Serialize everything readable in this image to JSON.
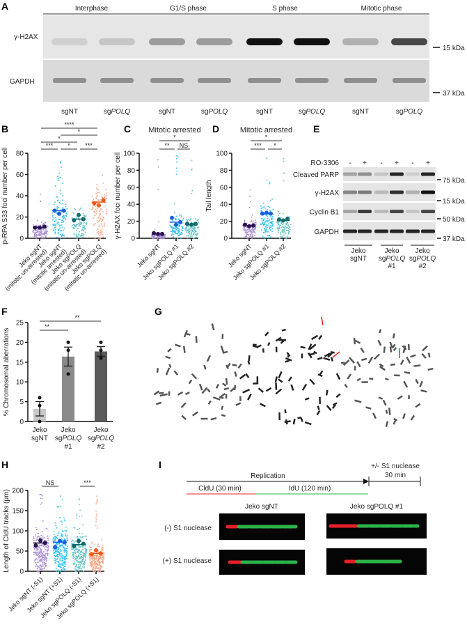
{
  "panel_labels": [
    "A",
    "B",
    "C",
    "D",
    "E",
    "F",
    "G",
    "H",
    "I"
  ],
  "A": {
    "phases": [
      "Interphase",
      "G1/S phase",
      "S phase",
      "Mitotic phase"
    ],
    "rows": [
      "γ-H2AX",
      "GAPDH"
    ],
    "markers": [
      "15 kDa",
      "37 kDa"
    ],
    "lanes": [
      "sgNT",
      "sgPOLQ",
      "sgNT",
      "sgPOLQ",
      "sgNT",
      "sgPOLQ",
      "sgNT",
      "sgPOLQ"
    ]
  },
  "E": {
    "treatment_label": "RO-3306",
    "treatment": [
      "-",
      "+",
      "-",
      "+",
      "-",
      "+"
    ],
    "rows": [
      "Cleaved PARP",
      "γ-H2AX",
      "Cyclin B1",
      "GAPDH"
    ],
    "markers": [
      "75 kDa",
      "15 kDa",
      "50 kDa",
      "37 kDa"
    ],
    "groups": [
      [
        "Jeko",
        "sgNT"
      ],
      [
        "Jeko",
        "sgPOLQ",
        "#1"
      ],
      [
        "Jeko",
        "sgPOLQ",
        "#2"
      ]
    ]
  },
  "I": {
    "timeline": {
      "replication": "Replication",
      "cldu": "CldU (30 min)",
      "idu": "IdU (120 min)",
      "s1": "+/- S1 nuclease",
      "s1_time": "30 min"
    },
    "columns": [
      "Jeko sgNT",
      "Jeko sgPOLQ #1"
    ],
    "rows": [
      "(-) S1 nuclease",
      "(+) S1 nuclease"
    ],
    "colors": {
      "cldu": "#e8202a",
      "idu": "#2db34a"
    }
  },
  "chart_data": [
    {
      "panel": "B",
      "type": "scatter",
      "ylabel": "p-RPA S33 foci number per cell",
      "ylim": [
        0,
        80
      ],
      "yticks": [
        0,
        20,
        40,
        60,
        80
      ],
      "categories": [
        "Jeko sgNT (mitotic un-arrested)",
        "Jeko sgNT (mitotic arrested)",
        "Jeko sgPOLQ (mitotic un-arrested)",
        "Jeko sgPOLQ (mitotic un-arrested)"
      ],
      "colors": [
        "#a98fd6",
        "#2ec3f5",
        "#6cc5c8",
        "#f7a98a"
      ],
      "mean_colors": [
        "#2a1450",
        "#1b5fe0",
        "#0f6b6b",
        "#f05a1a"
      ],
      "means": [
        10,
        26,
        18,
        34
      ],
      "replicates": [
        [
          10,
          10,
          11
        ],
        [
          26,
          23,
          26
        ],
        [
          17,
          22,
          18
        ],
        [
          33,
          31,
          36
        ]
      ],
      "max": [
        46,
        75,
        52,
        71
      ],
      "significance": [
        {
          "pair": [
            0,
            1
          ],
          "label": "***"
        },
        {
          "pair": [
            1,
            2
          ],
          "label": "*"
        },
        {
          "pair": [
            2,
            3
          ],
          "label": "***"
        },
        {
          "pair": [
            0,
            2
          ],
          "label": "*"
        },
        {
          "pair": [
            1,
            3
          ],
          "label": "*"
        },
        {
          "pair": [
            0,
            3
          ],
          "label": "****"
        }
      ]
    },
    {
      "panel": "C",
      "type": "scatter",
      "title": "Mitotic arrested",
      "ylabel": "γ-H2AX foci number per cell",
      "ylim": [
        0,
        100
      ],
      "yticks": [
        0,
        20,
        40,
        60,
        80,
        100
      ],
      "categories": [
        "Jeko sgNT",
        "Jeko sgPOLQ #1",
        "Jeko sgPOLQ #2"
      ],
      "colors": [
        "#a98fd6",
        "#2ec3f5",
        "#6cc5c8"
      ],
      "mean_colors": [
        "#2a1450",
        "#1b5fe0",
        "#0f6b6b"
      ],
      "means": [
        5,
        19,
        16
      ],
      "replicates": [
        [
          6,
          5,
          5
        ],
        [
          24,
          16,
          19
        ],
        [
          17,
          16,
          17
        ]
      ],
      "max": [
        100,
        98,
        100
      ],
      "significance": [
        {
          "pair": [
            0,
            1
          ],
          "label": "**"
        },
        {
          "pair": [
            1,
            2
          ],
          "label": "NS"
        },
        {
          "pair": [
            0,
            2
          ],
          "label": "*"
        }
      ]
    },
    {
      "panel": "D",
      "type": "scatter",
      "title": "Mitotic arrested",
      "ylabel": "Tail length",
      "ylim": [
        0,
        100
      ],
      "yticks": [
        0,
        20,
        40,
        60,
        80,
        100
      ],
      "categories": [
        "Jeko sgNT",
        "Jeko sgPOLQ #1",
        "Jeko sgPOLQ #2"
      ],
      "colors": [
        "#a98fd6",
        "#2ec3f5",
        "#6cc5c8"
      ],
      "mean_colors": [
        "#2a1450",
        "#1b5fe0",
        "#0f6b6b"
      ],
      "means": [
        15,
        29,
        21
      ],
      "replicates": [
        [
          16,
          14,
          15
        ],
        [
          29,
          30,
          29
        ],
        [
          22,
          21,
          23
        ]
      ],
      "max": [
        75,
        98,
        95
      ],
      "significance": [
        {
          "pair": [
            0,
            1
          ],
          "label": "***"
        },
        {
          "pair": [
            1,
            2
          ],
          "label": "*"
        },
        {
          "pair": [
            0,
            2
          ],
          "label": "*"
        }
      ]
    },
    {
      "panel": "F",
      "type": "bar",
      "ylabel": "% Chromosomal aberrations",
      "ylim": [
        0,
        25
      ],
      "yticks": [
        0,
        5,
        10,
        15,
        20,
        25
      ],
      "categories": [
        [
          "Jeko",
          "sgNT"
        ],
        [
          "Jeko",
          "sgPOLQ",
          "#1"
        ],
        [
          "Jeko",
          "sgPOLQ",
          "#2"
        ]
      ],
      "values": [
        3.2,
        16.4,
        17.7
      ],
      "sem": [
        1.8,
        2.4,
        1.2
      ],
      "points": [
        [
          0,
          4,
          6
        ],
        [
          12,
          18,
          20
        ],
        [
          16,
          18,
          20
        ]
      ],
      "colors": [
        "#c8c8c8",
        "#8a8a8a",
        "#5a5a5a"
      ],
      "significance": [
        {
          "pair": [
            0,
            1
          ],
          "label": "**"
        },
        {
          "pair": [
            0,
            2
          ],
          "label": "**"
        }
      ]
    },
    {
      "panel": "H",
      "type": "scatter",
      "ylabel": "Length of CldU tracks (μm)",
      "ylim": [
        0,
        200
      ],
      "yticks": [
        0,
        50,
        100,
        150,
        200
      ],
      "categories": [
        "Jeko sgNT (-S1)",
        "Jeko sgNT (+S1)",
        "Jeko sgPOLQ (-S1)",
        "Jeko sgPOLQ (+S1)"
      ],
      "colors": [
        "#a98fd6",
        "#2ec3f5",
        "#6cc5c8",
        "#f7a98a"
      ],
      "mean_colors": [
        "#2a1450",
        "#1b5fe0",
        "#0f6b6b",
        "#f05a1a"
      ],
      "means": [
        70,
        72,
        66,
        44
      ],
      "replicates": [
        [
          64,
          76,
          70
        ],
        [
          60,
          75,
          72
        ],
        [
          62,
          75,
          68
        ],
        [
          42,
          52,
          44
        ]
      ],
      "max": [
        198,
        198,
        192,
        190
      ],
      "significance": [
        {
          "pair": [
            0,
            1
          ],
          "label": "NS"
        },
        {
          "pair": [
            2,
            3
          ],
          "label": "***"
        }
      ]
    }
  ]
}
